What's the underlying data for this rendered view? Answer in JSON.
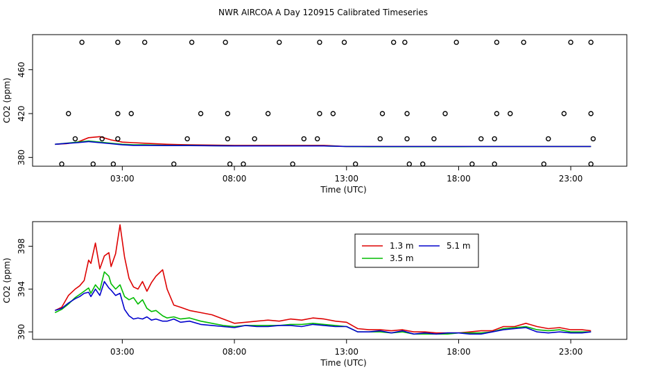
{
  "title": "NWR AIRCOA A  Day 120915  Calibrated Timeseries",
  "chart_data": [
    {
      "type": "scatter+line",
      "name": "top-panel",
      "xlabel": "Time (UTC)",
      "ylabel": "CO2 (ppm)",
      "xlim": [
        -1.0,
        25.5
      ],
      "ylim": [
        372,
        492
      ],
      "xticks": [
        3,
        8,
        13,
        18,
        23
      ],
      "xtick_labels": [
        "03:00",
        "08:00",
        "13:00",
        "18:00",
        "23:00"
      ],
      "yticks": [
        380,
        420,
        460
      ],
      "ytick_labels": [
        "380",
        "420",
        "460"
      ],
      "calibration_points": {
        "name": "calibration standards",
        "points": [
          [
            0.3,
            374
          ],
          [
            1.7,
            374
          ],
          [
            2.6,
            374
          ],
          [
            5.3,
            374
          ],
          [
            7.8,
            374
          ],
          [
            8.4,
            374
          ],
          [
            10.6,
            374
          ],
          [
            13.4,
            374
          ],
          [
            15.8,
            374
          ],
          [
            16.4,
            374
          ],
          [
            18.6,
            374
          ],
          [
            19.6,
            374
          ],
          [
            21.8,
            374
          ],
          [
            23.9,
            374
          ],
          [
            0.9,
            397
          ],
          [
            2.1,
            397
          ],
          [
            2.8,
            397
          ],
          [
            5.9,
            397
          ],
          [
            7.7,
            397
          ],
          [
            8.9,
            397
          ],
          [
            11.1,
            397
          ],
          [
            11.7,
            397
          ],
          [
            14.5,
            397
          ],
          [
            15.7,
            397
          ],
          [
            16.9,
            397
          ],
          [
            19.0,
            397
          ],
          [
            19.6,
            397
          ],
          [
            22.0,
            397
          ],
          [
            24.0,
            397
          ],
          [
            0.6,
            420
          ],
          [
            2.8,
            420
          ],
          [
            3.4,
            420
          ],
          [
            6.5,
            420
          ],
          [
            7.7,
            420
          ],
          [
            9.5,
            420
          ],
          [
            11.8,
            420
          ],
          [
            12.4,
            420
          ],
          [
            14.6,
            420
          ],
          [
            15.7,
            420
          ],
          [
            17.4,
            420
          ],
          [
            19.7,
            420
          ],
          [
            20.3,
            420
          ],
          [
            22.7,
            420
          ],
          [
            23.9,
            420
          ],
          [
            1.2,
            485
          ],
          [
            2.8,
            485
          ],
          [
            4.0,
            485
          ],
          [
            6.1,
            485
          ],
          [
            7.6,
            485
          ],
          [
            10.0,
            485
          ],
          [
            11.8,
            485
          ],
          [
            12.9,
            485
          ],
          [
            15.1,
            485
          ],
          [
            15.6,
            485
          ],
          [
            17.9,
            485
          ],
          [
            19.7,
            485
          ],
          [
            20.9,
            485
          ],
          [
            23.0,
            485
          ],
          [
            23.9,
            485
          ]
        ]
      },
      "series": [
        {
          "name": "1.3 m",
          "color": "#dd0000",
          "x": [
            0,
            0.5,
            1,
            1.5,
            2,
            2.5,
            3,
            3.5,
            4,
            5,
            6,
            8,
            10,
            12,
            13,
            14,
            16,
            18,
            20,
            22,
            23.9
          ],
          "values": [
            392,
            392.5,
            394,
            398,
            399,
            396,
            394,
            393.5,
            393,
            392,
            391.5,
            391,
            391,
            391,
            390,
            390,
            390,
            390,
            390,
            390,
            390
          ]
        },
        {
          "name": "3.5 m",
          "color": "#00bb00",
          "x": [
            0,
            0.5,
            1,
            1.5,
            2,
            2.5,
            3,
            3.5,
            4,
            5,
            6,
            8,
            10,
            12,
            13,
            14,
            16,
            18,
            20,
            22,
            23.9
          ],
          "values": [
            392,
            393,
            394,
            395,
            394,
            393,
            392,
            391.5,
            391.5,
            391,
            391,
            390.5,
            390.5,
            390.5,
            390,
            389.8,
            389.8,
            389.8,
            390,
            390,
            390
          ]
        },
        {
          "name": "5.1 m",
          "color": "#0000cc",
          "x": [
            0,
            0.5,
            1,
            1.5,
            2,
            2.5,
            3,
            3.5,
            4,
            5,
            6,
            8,
            10,
            12,
            13,
            14,
            16,
            18,
            20,
            22,
            23.9
          ],
          "values": [
            392,
            392.8,
            393.5,
            394.5,
            393.5,
            392.5,
            391.5,
            391,
            391,
            390.8,
            390.8,
            390.5,
            390.5,
            390.5,
            390,
            390,
            390,
            390,
            390,
            390,
            390
          ]
        }
      ]
    },
    {
      "type": "line",
      "name": "bottom-panel",
      "xlabel": "Time (UTC)",
      "ylabel": "CO2 (ppm)",
      "xlim": [
        -1.0,
        25.5
      ],
      "ylim": [
        389.3,
        400.3
      ],
      "xticks": [
        3,
        8,
        13,
        18,
        23
      ],
      "xtick_labels": [
        "03:00",
        "08:00",
        "13:00",
        "18:00",
        "23:00"
      ],
      "yticks": [
        390,
        394,
        398
      ],
      "ytick_labels": [
        "390",
        "394",
        "398"
      ],
      "legend": {
        "placement": "top-center",
        "entries": [
          "1.3 m",
          "5.1 m",
          "3.5 m"
        ]
      },
      "series": [
        {
          "name": "1.3 m",
          "color": "#dd0000",
          "x": [
            0,
            0.3,
            0.6,
            0.9,
            1.1,
            1.3,
            1.5,
            1.6,
            1.8,
            2.0,
            2.2,
            2.4,
            2.5,
            2.7,
            2.9,
            3.1,
            3.3,
            3.5,
            3.7,
            3.9,
            4.1,
            4.3,
            4.5,
            4.8,
            5.0,
            5.3,
            5.6,
            6.0,
            6.5,
            7.0,
            7.5,
            8.0,
            8.5,
            9.0,
            9.5,
            10.0,
            10.5,
            11.0,
            11.5,
            12.0,
            12.5,
            13.0,
            13.5,
            14.0,
            14.5,
            15.0,
            15.5,
            16.0,
            16.5,
            17.0,
            17.5,
            18.0,
            18.5,
            19.0,
            19.5,
            20.0,
            20.5,
            21.0,
            21.5,
            22.0,
            22.5,
            23.0,
            23.5,
            23.9
          ],
          "values": [
            392.0,
            392.3,
            393.4,
            394.0,
            394.3,
            394.8,
            396.7,
            396.4,
            398.3,
            395.9,
            397.1,
            397.4,
            396.1,
            397.3,
            400.0,
            397.0,
            395.0,
            394.2,
            394.0,
            394.7,
            393.8,
            394.6,
            395.2,
            395.8,
            394.0,
            392.5,
            392.3,
            392.0,
            391.8,
            391.6,
            391.2,
            390.8,
            390.9,
            391.0,
            391.1,
            391.0,
            391.2,
            391.1,
            391.3,
            391.2,
            391.0,
            390.9,
            390.3,
            390.2,
            390.2,
            390.1,
            390.2,
            390.0,
            390.0,
            389.9,
            389.9,
            389.9,
            390.0,
            390.1,
            390.1,
            390.5,
            390.5,
            390.8,
            390.5,
            390.3,
            390.4,
            390.2,
            390.2,
            390.1
          ]
        },
        {
          "name": "3.5 m",
          "color": "#00bb00",
          "x": [
            0,
            0.3,
            0.6,
            0.9,
            1.1,
            1.3,
            1.5,
            1.6,
            1.8,
            2.0,
            2.2,
            2.4,
            2.5,
            2.7,
            2.9,
            3.1,
            3.3,
            3.5,
            3.7,
            3.9,
            4.1,
            4.3,
            4.5,
            4.8,
            5.0,
            5.3,
            5.6,
            6.0,
            6.5,
            7.0,
            7.5,
            8.0,
            8.5,
            9.0,
            9.5,
            10.0,
            10.5,
            11.0,
            11.5,
            12.0,
            12.5,
            13.0,
            13.5,
            14.0,
            14.5,
            15.0,
            15.5,
            16.0,
            16.5,
            17.0,
            17.5,
            18.0,
            18.5,
            19.0,
            19.5,
            20.0,
            20.5,
            21.0,
            21.5,
            22.0,
            22.5,
            23.0,
            23.5,
            23.9
          ],
          "values": [
            391.8,
            392.1,
            392.6,
            393.2,
            393.5,
            393.8,
            394.1,
            393.6,
            394.4,
            393.9,
            395.6,
            395.2,
            394.5,
            394.0,
            394.4,
            393.3,
            393.0,
            393.2,
            392.6,
            393.0,
            392.2,
            391.9,
            392.0,
            391.5,
            391.3,
            391.4,
            391.2,
            391.3,
            391.0,
            390.8,
            390.6,
            390.5,
            390.6,
            390.6,
            390.6,
            390.6,
            390.7,
            390.7,
            390.8,
            390.7,
            390.6,
            390.5,
            390.0,
            390.0,
            390.0,
            389.9,
            390.0,
            389.8,
            389.8,
            389.8,
            389.8,
            389.9,
            389.9,
            389.9,
            390.0,
            390.3,
            390.4,
            390.5,
            390.2,
            390.1,
            390.2,
            390.0,
            390.0,
            390.0
          ]
        },
        {
          "name": "5.1 m",
          "color": "#0000cc",
          "x": [
            0,
            0.3,
            0.6,
            0.9,
            1.1,
            1.3,
            1.5,
            1.6,
            1.8,
            2.0,
            2.2,
            2.4,
            2.5,
            2.7,
            2.9,
            3.1,
            3.3,
            3.5,
            3.7,
            3.9,
            4.1,
            4.3,
            4.5,
            4.8,
            5.0,
            5.3,
            5.6,
            6.0,
            6.5,
            7.0,
            7.5,
            8.0,
            8.5,
            9.0,
            9.5,
            10.0,
            10.5,
            11.0,
            11.5,
            12.0,
            12.5,
            13.0,
            13.5,
            14.0,
            14.5,
            15.0,
            15.5,
            16.0,
            16.5,
            17.0,
            17.5,
            18.0,
            18.5,
            19.0,
            19.5,
            20.0,
            20.5,
            21.0,
            21.5,
            22.0,
            22.5,
            23.0,
            23.5,
            23.9
          ],
          "values": [
            392.0,
            392.2,
            392.7,
            393.1,
            393.3,
            393.6,
            393.7,
            393.3,
            394.0,
            393.4,
            394.7,
            394.1,
            393.9,
            393.4,
            393.6,
            392.1,
            391.5,
            391.2,
            391.3,
            391.2,
            391.4,
            391.1,
            391.2,
            391.0,
            391.0,
            391.2,
            390.9,
            391.0,
            390.7,
            390.6,
            390.5,
            390.4,
            390.6,
            390.5,
            390.5,
            390.6,
            390.6,
            390.5,
            390.7,
            390.6,
            390.5,
            390.5,
            390.0,
            390.0,
            390.1,
            389.9,
            390.1,
            389.8,
            389.9,
            389.8,
            389.9,
            389.9,
            389.8,
            389.8,
            390.0,
            390.2,
            390.3,
            390.4,
            390.0,
            389.9,
            390.0,
            389.9,
            389.9,
            390.0
          ]
        }
      ]
    }
  ]
}
